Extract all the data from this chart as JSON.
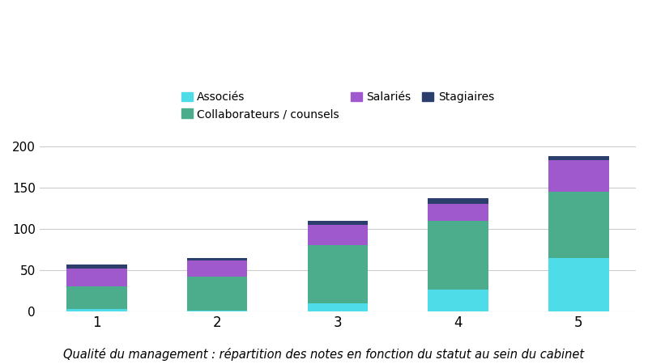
{
  "categories": [
    1,
    2,
    3,
    4,
    5
  ],
  "series": {
    "Associés": [
      3,
      1,
      10,
      27,
      65
    ],
    "Collaborateurs / counsels": [
      27,
      41,
      70,
      83,
      80
    ],
    "Salariés": [
      22,
      20,
      25,
      20,
      38
    ],
    "Stagiaires": [
      5,
      3,
      5,
      7,
      5
    ]
  },
  "colors": {
    "Associés": "#4DDCE8",
    "Collaborateurs / counsels": "#4BAD8C",
    "Salariés": "#A059CC",
    "Stagiaires": "#2C3E6B"
  },
  "order": [
    "Associés",
    "Collaborateurs / counsels",
    "Salariés",
    "Stagiaires"
  ],
  "legend_row1": [
    "Associés",
    "Collaborateurs / counsels",
    "Salariés"
  ],
  "legend_row2": [
    "Stagiaires"
  ],
  "ylim": [
    0,
    210
  ],
  "yticks": [
    0,
    50,
    100,
    150,
    200
  ],
  "title": "Qualité du management : répartition des notes en fonction du statut au sein du cabinet",
  "title_fontsize": 10.5,
  "legend_fontsize": 10,
  "background_color": "#ffffff",
  "bar_width": 0.5,
  "grid_color": "#cccccc"
}
